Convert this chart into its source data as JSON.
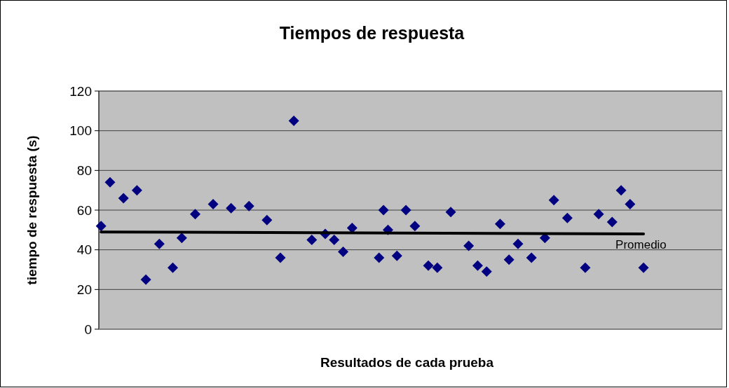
{
  "chart_data": {
    "type": "scatter",
    "title": "Tiempos de respuesta",
    "xlabel": "Resultados de cada prueba",
    "ylabel": "tiempo de respuesta (s)",
    "categories": [
      null,
      null,
      null,
      null,
      null,
      null,
      null,
      null,
      null,
      null,
      null,
      null,
      null,
      null,
      null,
      null,
      null,
      null,
      null,
      null,
      null,
      null,
      null,
      null,
      null,
      null,
      null,
      null,
      null,
      null,
      null,
      null,
      null,
      null,
      null,
      null,
      null,
      null,
      null,
      null,
      null,
      null,
      null,
      null,
      null,
      null,
      null,
      null,
      null,
      null,
      null,
      null,
      null,
      null,
      null,
      null,
      null,
      null,
      null,
      null,
      null,
      null,
      null,
      null,
      null,
      null,
      null,
      null,
      null,
      null,
      null,
      null,
      null,
      null,
      null,
      null,
      null,
      null,
      null,
      null,
      null,
      null,
      null,
      null,
      null,
      null,
      null,
      null,
      null,
      null,
      null,
      null,
      null,
      null,
      null,
      null,
      null,
      null,
      null,
      null,
      null,
      null,
      null,
      null,
      null,
      null,
      null,
      null,
      null,
      null,
      null,
      null,
      null,
      null,
      null,
      null,
      null,
      null,
      null,
      null,
      null,
      null,
      null,
      null,
      null,
      null,
      null,
      null,
      null,
      null,
      null,
      null,
      null,
      null,
      null,
      null,
      null,
      null,
      null
    ],
    "ylim": [
      0,
      120
    ],
    "yticks": [
      0,
      20,
      40,
      60,
      80,
      100,
      120
    ],
    "grid": "y",
    "legend": false,
    "marker": "diamond",
    "tick_labels": "y",
    "series": [
      {
        "color": "#000080",
        "values": [
          52,
          null,
          74,
          null,
          null,
          66,
          null,
          null,
          70,
          null,
          25,
          null,
          null,
          43,
          null,
          null,
          31,
          null,
          46,
          null,
          null,
          58,
          null,
          null,
          null,
          63,
          null,
          null,
          null,
          61,
          null,
          null,
          null,
          62,
          null,
          null,
          null,
          55,
          null,
          null,
          36,
          null,
          null,
          105,
          null,
          null,
          null,
          45,
          null,
          null,
          48,
          null,
          45,
          null,
          39,
          null,
          51,
          null,
          null,
          null,
          null,
          null,
          36,
          60,
          50,
          null,
          37,
          null,
          60,
          null,
          52,
          null,
          null,
          32,
          null,
          31,
          null,
          null,
          59,
          null,
          null,
          null,
          42,
          null,
          32,
          null,
          29,
          null,
          null,
          53,
          null,
          35,
          null,
          43,
          null,
          null,
          36,
          null,
          null,
          46,
          null,
          65,
          null,
          null,
          56,
          null,
          null,
          null,
          31,
          null,
          null,
          58,
          null,
          null,
          54,
          null,
          70,
          null,
          63,
          null,
          null,
          31,
          null,
          null,
          null,
          null,
          null,
          null,
          null,
          null,
          null,
          null,
          null,
          null,
          null,
          null,
          null,
          null,
          null
        ]
      },
      {
        "type": "line",
        "name": "Promedio",
        "color": "#000000",
        "marker": "none",
        "values": [
          49,
          null,
          null,
          null,
          null,
          null,
          null,
          null,
          null,
          null,
          null,
          null,
          null,
          null,
          null,
          null,
          null,
          null,
          null,
          null,
          null,
          null,
          null,
          null,
          null,
          null,
          null,
          null,
          null,
          null,
          null,
          null,
          null,
          null,
          null,
          null,
          null,
          null,
          null,
          null,
          null,
          null,
          null,
          null,
          null,
          null,
          null,
          null,
          null,
          null,
          null,
          null,
          null,
          null,
          null,
          null,
          null,
          null,
          null,
          null,
          null,
          null,
          null,
          null,
          null,
          null,
          null,
          null,
          null,
          null,
          null,
          null,
          null,
          null,
          null,
          null,
          null,
          null,
          null,
          null,
          null,
          null,
          null,
          null,
          null,
          null,
          null,
          null,
          null,
          null,
          null,
          null,
          null,
          null,
          null,
          null,
          null,
          null,
          null,
          null,
          null,
          null,
          null,
          null,
          null,
          null,
          null,
          null,
          null,
          null,
          null,
          null,
          null,
          null,
          null,
          null,
          null,
          null,
          null,
          null,
          null,
          48,
          null,
          null,
          null,
          null,
          null,
          null,
          null,
          null,
          null,
          null,
          null,
          null,
          null,
          null,
          null,
          null,
          null
        ]
      }
    ]
  }
}
